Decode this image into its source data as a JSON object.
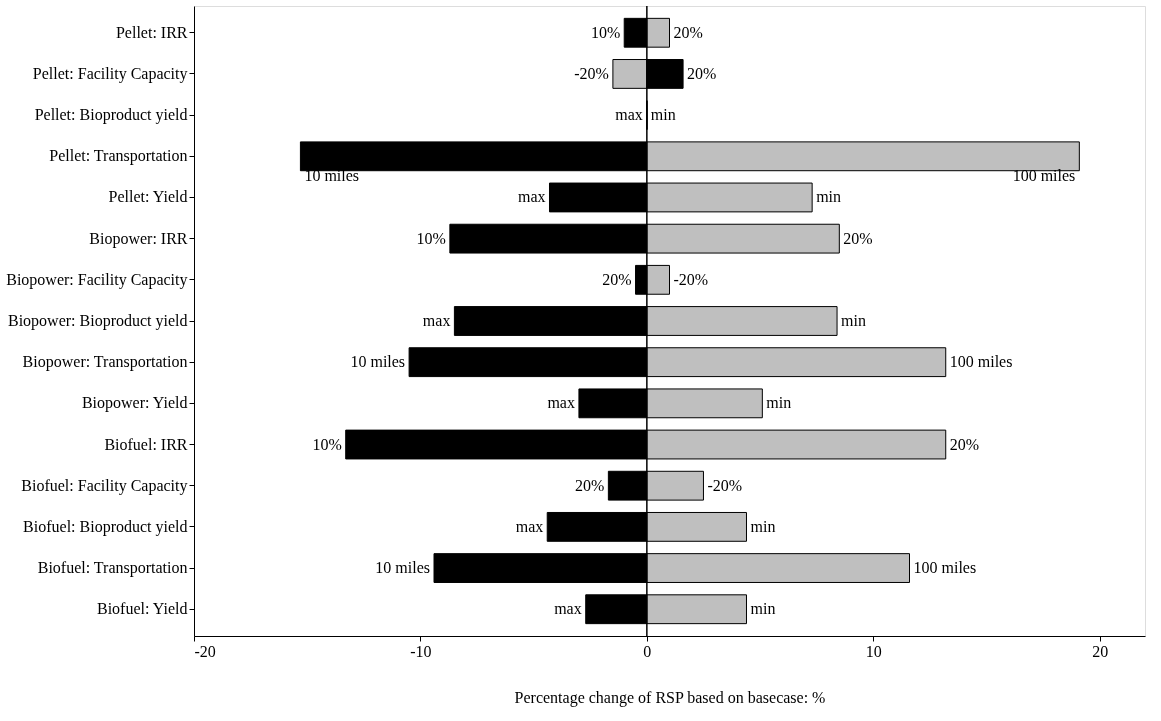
{
  "chart_data": {
    "type": "bar",
    "orientation": "horizontal",
    "stacked": true,
    "categories": [
      "Pellet: IRR",
      "Pellet: Facility Capacity",
      "Pellet: Bioproduct yield",
      "Pellet: Transportation",
      "Pellet: Yield",
      "Biopower: IRR",
      "Biopower: Facility Capacity",
      "Biopower: Bioproduct yield",
      "Biopower: Transportation",
      "Biopower: Yield",
      "Biofuel: IRR",
      "Biofuel: Facility Capacity",
      "Biofuel: Bioproduct yield",
      "Biofuel: Transportation",
      "Biofuel: Yield"
    ],
    "series": [
      {
        "values": [
          -1.0,
          -1.5,
          0,
          -15.3,
          -4.3,
          -8.7,
          -0.5,
          -8.5,
          -10.5,
          -3.0,
          -13.3,
          -1.7,
          -4.4,
          -9.4,
          -2.7
        ],
        "colors": [
          "#000000",
          "#bfbfbf",
          "#000000",
          "#000000",
          "#000000",
          "#000000",
          "#000000",
          "#000000",
          "#000000",
          "#000000",
          "#000000",
          "#000000",
          "#000000",
          "#000000",
          "#000000"
        ]
      },
      {
        "values": [
          1.0,
          1.6,
          0,
          19.1,
          7.3,
          8.5,
          1.0,
          8.4,
          13.2,
          5.1,
          13.2,
          2.5,
          4.4,
          11.6,
          4.4
        ],
        "colors": [
          "#bfbfbf",
          "#000000",
          "#bfbfbf",
          "#bfbfbf",
          "#bfbfbf",
          "#bfbfbf",
          "#bfbfbf",
          "#bfbfbf",
          "#bfbfbf",
          "#bfbfbf",
          "#bfbfbf",
          "#bfbfbf",
          "#bfbfbf",
          "#bfbfbf",
          "#bfbfbf"
        ]
      }
    ],
    "annotations": [
      {
        "text": "10%",
        "x": -1.0,
        "y": "Pellet: IRR"
      },
      {
        "text": "20%",
        "x": 1.0,
        "y": "Pellet: IRR"
      },
      {
        "text": "-20%",
        "x": -1.5,
        "y": "Pellet: Facility Capacity"
      },
      {
        "text": "20%",
        "x": 1.6,
        "y": "Pellet: Facility Capacity"
      },
      {
        "text": "max",
        "x": 0,
        "y": "Pellet: Bioproduct yield"
      },
      {
        "text": "min",
        "x": 0,
        "y": "Pellet: Bioproduct yield"
      },
      {
        "text": "10 miles",
        "x": -15.3,
        "y": "Pellet: Transportation"
      },
      {
        "text": "100 miles",
        "x": 19.1,
        "y": "Pellet: Transportation"
      },
      {
        "text": "max",
        "x": -4.3,
        "y": "Pellet: Yield"
      },
      {
        "text": "min",
        "x": 7.3,
        "y": "Pellet: Yield"
      },
      {
        "text": "10%",
        "x": -8.7,
        "y": "Biopower: IRR"
      },
      {
        "text": "20%",
        "x": 8.5,
        "y": "Biopower: IRR"
      },
      {
        "text": "20%",
        "x": -0.5,
        "y": "Biopower: Facility Capacity"
      },
      {
        "text": "-20%",
        "x": 1.0,
        "y": "Biopower: Facility Capacity"
      },
      {
        "text": "max",
        "x": -8.5,
        "y": "Biopower: Bioproduct yield"
      },
      {
        "text": "min",
        "x": 8.4,
        "y": "Biopower: Bioproduct yield"
      },
      {
        "text": "10 miles",
        "x": -10.5,
        "y": "Biopower: Transportation"
      },
      {
        "text": "100 miles",
        "x": 13.2,
        "y": "Biopower: Transportation"
      },
      {
        "text": "max",
        "x": -3.0,
        "y": "Biopower: Yield"
      },
      {
        "text": "min",
        "x": 5.1,
        "y": "Biopower: Yield"
      },
      {
        "text": "10%",
        "x": -13.3,
        "y": "Biofuel: IRR"
      },
      {
        "text": "20%",
        "x": 13.2,
        "y": "Biofuel: IRR"
      },
      {
        "text": "20%",
        "x": -1.7,
        "y": "Biofuel: Facility Capacity"
      },
      {
        "text": "-20%",
        "x": 2.5,
        "y": "Biofuel: Facility Capacity"
      },
      {
        "text": "max",
        "x": -4.4,
        "y": "Biofuel: Bioproduct yield"
      },
      {
        "text": "min",
        "x": 4.4,
        "y": "Biofuel: Bioproduct yield"
      },
      {
        "text": "10 miles",
        "x": -9.4,
        "y": "Biofuel: Transportation"
      },
      {
        "text": "100 miles",
        "x": 11.6,
        "y": "Biofuel: Transportation"
      },
      {
        "text": "max",
        "x": -2.7,
        "y": "Biofuel: Yield"
      },
      {
        "text": "min",
        "x": 4.4,
        "y": "Biofuel: Yield"
      }
    ],
    "xlabel": "Percentage change of RSP based on basecase: %",
    "xlim": [
      -20,
      22
    ],
    "xticks": [
      -20,
      -10,
      0,
      10,
      20
    ],
    "ref_lines": [
      {
        "axis": "x",
        "value": 0,
        "color": "#000000"
      }
    ],
    "grid": false
  }
}
